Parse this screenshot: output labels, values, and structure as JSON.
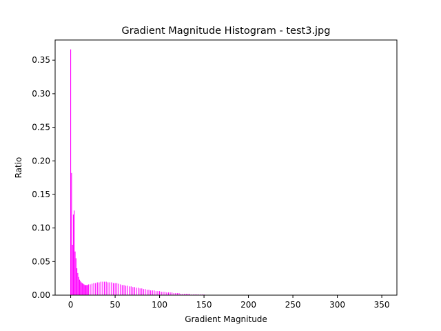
{
  "chart_data": {
    "type": "bar",
    "title": "Gradient Magnitude Histogram - test3.jpg",
    "xlabel": "Gradient Magnitude",
    "ylabel": "Ratio",
    "xlim": [
      -17.5,
      367
    ],
    "ylim": [
      0,
      0.38
    ],
    "xticks": [
      0,
      50,
      100,
      150,
      200,
      250,
      300,
      350
    ],
    "xtick_labels": [
      "0",
      "50",
      "100",
      "150",
      "200",
      "250",
      "300",
      "350"
    ],
    "yticks": [
      0.0,
      0.05,
      0.1,
      0.15,
      0.2,
      0.25,
      0.3,
      0.35
    ],
    "ytick_labels": [
      "0.00",
      "0.05",
      "0.10",
      "0.15",
      "0.20",
      "0.25",
      "0.30",
      "0.35"
    ],
    "bar_color": "#ff00ff",
    "grid": false,
    "x": [
      0,
      1,
      2,
      3,
      4,
      5,
      6,
      7,
      8,
      9,
      10,
      11,
      12,
      13,
      14,
      15,
      16,
      17,
      18,
      19,
      20,
      22,
      24,
      26,
      28,
      30,
      32,
      34,
      36,
      38,
      40,
      42,
      44,
      46,
      48,
      50,
      52,
      54,
      56,
      58,
      60,
      62,
      64,
      66,
      68,
      70,
      72,
      74,
      76,
      78,
      80,
      82,
      84,
      86,
      88,
      90,
      92,
      94,
      96,
      98,
      100,
      102,
      104,
      106,
      108,
      110,
      112,
      114,
      116,
      118,
      120,
      122,
      124,
      126,
      128,
      130,
      132,
      134,
      136,
      138,
      140,
      142,
      144,
      146,
      148,
      150
    ],
    "values": [
      0.366,
      0.182,
      0.075,
      0.12,
      0.126,
      0.065,
      0.055,
      0.04,
      0.033,
      0.027,
      0.023,
      0.021,
      0.019,
      0.018,
      0.017,
      0.016,
      0.015,
      0.015,
      0.015,
      0.015,
      0.016,
      0.016,
      0.017,
      0.018,
      0.018,
      0.019,
      0.019,
      0.02,
      0.02,
      0.02,
      0.02,
      0.019,
      0.019,
      0.019,
      0.018,
      0.018,
      0.018,
      0.017,
      0.016,
      0.015,
      0.015,
      0.014,
      0.014,
      0.013,
      0.013,
      0.012,
      0.012,
      0.011,
      0.011,
      0.01,
      0.01,
      0.009,
      0.009,
      0.008,
      0.008,
      0.007,
      0.007,
      0.007,
      0.006,
      0.006,
      0.006,
      0.005,
      0.005,
      0.005,
      0.004,
      0.004,
      0.004,
      0.004,
      0.003,
      0.003,
      0.003,
      0.003,
      0.002,
      0.002,
      0.002,
      0.002,
      0.002,
      0.002,
      0.001,
      0.001,
      0.001,
      0.001,
      0.001,
      0.001,
      0.001,
      0.001
    ]
  }
}
